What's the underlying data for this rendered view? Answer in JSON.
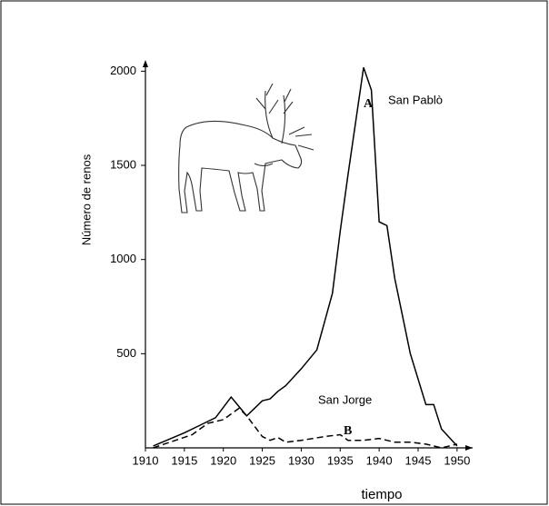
{
  "chart_data": {
    "type": "line",
    "x_label": "tiempo",
    "y_label": "Número de renos",
    "xlim": [
      1910,
      1952
    ],
    "xticks": [
      1910,
      1915,
      1920,
      1925,
      1930,
      1935,
      1940,
      1945,
      1950
    ],
    "ylim": [
      0,
      2050
    ],
    "yticks": [
      500,
      1000,
      1500,
      2000
    ],
    "annotations": [
      "A",
      "San Pablò",
      "San Jorge",
      "B"
    ],
    "series": [
      {
        "name": "San Pablò",
        "color": "#000000",
        "dash": false,
        "x": [
          1911,
          1915,
          1917,
          1919,
          1921,
          1923,
          1925,
          1926,
          1927,
          1928,
          1930,
          1932,
          1934,
          1935,
          1936,
          1938,
          1939,
          1940,
          1941,
          1942,
          1944,
          1946,
          1947,
          1948,
          1950
        ],
        "values": [
          10,
          80,
          120,
          160,
          270,
          170,
          250,
          260,
          300,
          330,
          420,
          520,
          820,
          1150,
          1450,
          2020,
          1900,
          1200,
          1180,
          900,
          500,
          230,
          230,
          100,
          10
        ]
      },
      {
        "name": "San Jorge",
        "color": "#000000",
        "dash": true,
        "x": [
          1911,
          1916,
          1918,
          1920,
          1922,
          1923,
          1925,
          1926,
          1927,
          1928,
          1930,
          1933,
          1935,
          1936,
          1938,
          1940,
          1942,
          1944,
          1946,
          1948,
          1950
        ],
        "values": [
          0,
          70,
          130,
          150,
          210,
          170,
          60,
          40,
          55,
          30,
          40,
          60,
          70,
          40,
          40,
          50,
          30,
          30,
          20,
          0,
          20
        ]
      }
    ]
  }
}
